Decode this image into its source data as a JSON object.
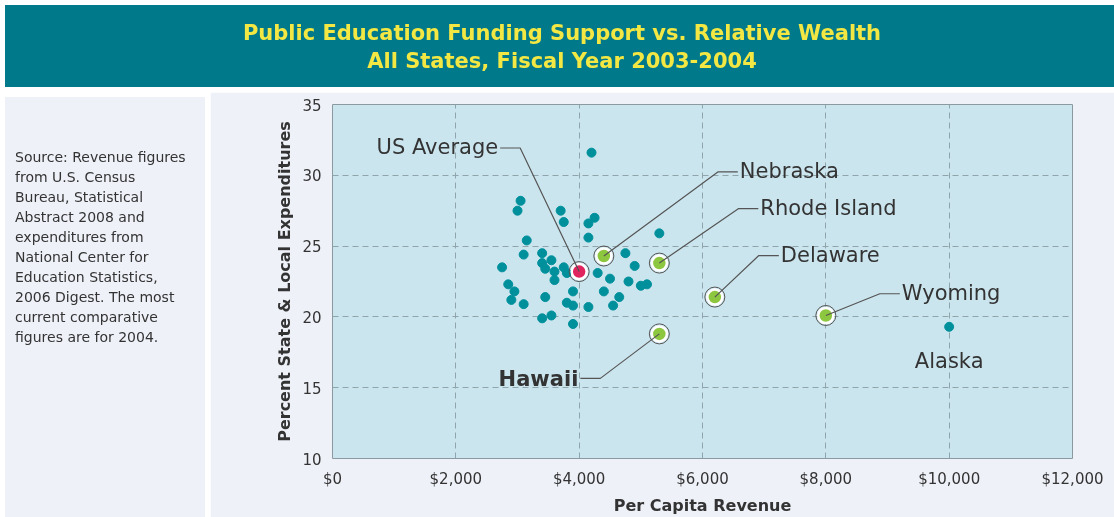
{
  "chart_data": {
    "type": "scatter",
    "title": "Public Education Funding Support vs. Relative Wealth\nAll States, Fiscal Year 2003-2004",
    "xlabel": "Per Capita Revenue",
    "ylabel": "Percent State & Local Expenditures",
    "xlim": [
      0,
      12000
    ],
    "ylim": [
      10,
      35
    ],
    "xticks": [
      {
        "value": 0,
        "label": "$0"
      },
      {
        "value": 2000,
        "label": "$2,000"
      },
      {
        "value": 4000,
        "label": "$4,000"
      },
      {
        "value": 6000,
        "label": "$6,000"
      },
      {
        "value": 8000,
        "label": "$8,000"
      },
      {
        "value": 10000,
        "label": "$10,000"
      },
      {
        "value": 12000,
        "label": "$12,000"
      }
    ],
    "yticks": [
      10,
      15,
      20,
      25,
      30,
      35
    ],
    "grid": true,
    "marker": "circle",
    "series": [
      {
        "color": "#00909c",
        "x": [
          4200,
          3050,
          3000,
          3700,
          3750,
          4150,
          4250,
          4150,
          5300,
          3150,
          3100,
          3400,
          4750,
          2750,
          3400,
          3450,
          3550,
          3600,
          3750,
          3800,
          4300,
          4500,
          4900,
          4800,
          5000,
          5100,
          3600,
          2850,
          2950,
          2900,
          3100,
          3450,
          3900,
          4400,
          4650,
          3800,
          3900,
          4150,
          4550,
          3400,
          3550,
          3900,
          10000
        ],
        "values": [
          31.6,
          28.2,
          27.5,
          27.5,
          26.7,
          26.6,
          27.0,
          25.6,
          25.9,
          25.4,
          24.4,
          24.5,
          24.5,
          23.5,
          23.8,
          23.4,
          24.0,
          23.2,
          23.5,
          23.1,
          23.1,
          22.7,
          23.6,
          22.5,
          22.2,
          22.3,
          22.6,
          22.3,
          21.8,
          21.2,
          20.9,
          21.4,
          21.8,
          21.8,
          21.4,
          21.0,
          20.8,
          20.7,
          20.8,
          19.9,
          20.1,
          19.5,
          19.3
        ]
      },
      {
        "color": "#8dc63f",
        "x": [
          4400,
          5300,
          6200,
          8000,
          5300
        ],
        "values": [
          24.3,
          23.8,
          21.4,
          20.1,
          18.8
        ]
      },
      {
        "color": "#e0245e",
        "x": [
          4000
        ],
        "values": [
          23.2
        ]
      }
    ],
    "annotations": [
      {
        "text": "US Average",
        "x": 4000,
        "y": 23.2
      },
      {
        "text": "Nebraska",
        "x": 4400,
        "y": 24.3
      },
      {
        "text": "Rhode Island",
        "x": 5300,
        "y": 23.8
      },
      {
        "text": "Delaware",
        "x": 6200,
        "y": 21.4
      },
      {
        "text": "Wyoming",
        "x": 8000,
        "y": 20.1
      },
      {
        "text": "Hawaii",
        "x": 5300,
        "y": 18.8
      },
      {
        "text": "Alaska",
        "x": 10000,
        "y": 19.3
      },
      "Source: Revenue figures from U.S. Census Bureau, Statistical Abstract 2008 and expenditures from National Center for Education Statistics, 2006 Digest. The most current comparative figures are for 2004."
    ]
  }
}
